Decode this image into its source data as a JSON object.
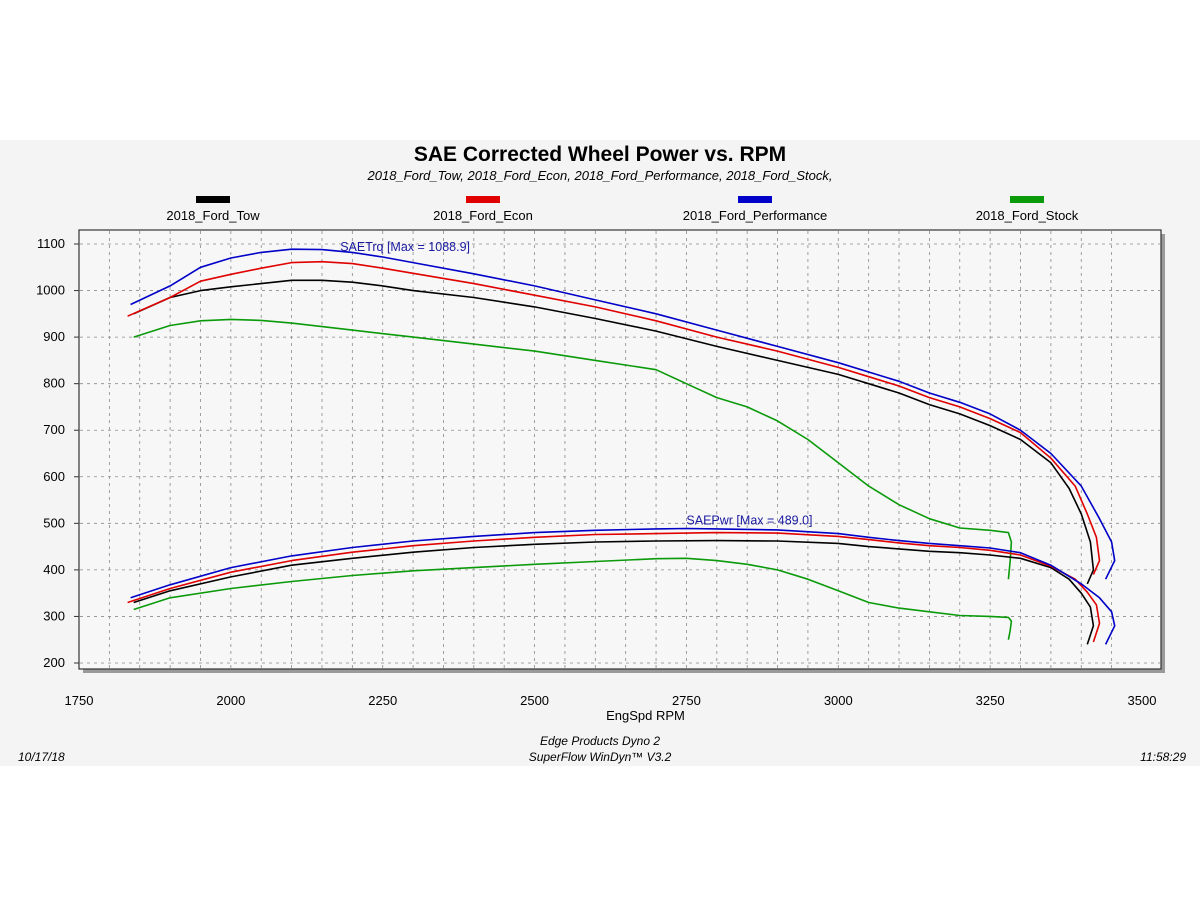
{
  "chart_data": {
    "type": "line",
    "title": "SAE Corrected Wheel Power vs. RPM",
    "subtitle": "2018_Ford_Tow, 2018_Ford_Econ, 2018_Ford_Performance, 2018_Ford_Stock,",
    "xlabel": "EngSpd RPM",
    "ylabel": "",
    "xlim": [
      1750,
      3500
    ],
    "ylim": [
      200,
      1100
    ],
    "xticks": [
      1750,
      2000,
      2250,
      2500,
      2750,
      3000,
      3250,
      3500
    ],
    "yticks": [
      200,
      300,
      400,
      500,
      600,
      700,
      800,
      900,
      1000,
      1100
    ],
    "grid": true,
    "legend": [
      {
        "name": "2018_Ford_Tow",
        "color": "#000000"
      },
      {
        "name": "2018_Ford_Econ",
        "color": "#e00000"
      },
      {
        "name": "2018_Ford_Performance",
        "color": "#0000c8"
      },
      {
        "name": "2018_Ford_Stock",
        "color": "#0a9a0a"
      }
    ],
    "annotations": [
      {
        "text": "SAETrq [Max = 1088.9]",
        "x": 2180,
        "y": 1088.9
      },
      {
        "text": "SAEPwr [Max = 489.0]",
        "x": 2750,
        "y": 489.0
      }
    ],
    "series": [
      {
        "name": "2018_Ford_Tow",
        "metric": "SAETrq",
        "color": "#000000",
        "x": [
          1840,
          1900,
          1950,
          2000,
          2050,
          2100,
          2150,
          2200,
          2250,
          2300,
          2400,
          2500,
          2600,
          2700,
          2800,
          2900,
          3000,
          3050,
          3100,
          3150,
          3200,
          3250,
          3300,
          3350,
          3380,
          3400,
          3415,
          3420,
          3410
        ],
        "y": [
          950,
          985,
          1000,
          1008,
          1015,
          1022,
          1022,
          1018,
          1010,
          1000,
          985,
          965,
          940,
          913,
          880,
          850,
          820,
          800,
          780,
          755,
          735,
          710,
          680,
          630,
          575,
          520,
          460,
          400,
          370
        ]
      },
      {
        "name": "2018_Ford_Econ",
        "metric": "SAETrq",
        "color": "#e00000",
        "x": [
          1830,
          1900,
          1950,
          2000,
          2050,
          2100,
          2150,
          2200,
          2250,
          2300,
          2400,
          2500,
          2600,
          2700,
          2800,
          2900,
          3000,
          3050,
          3100,
          3150,
          3200,
          3250,
          3300,
          3350,
          3390,
          3410,
          3425,
          3430,
          3420
        ],
        "y": [
          945,
          985,
          1020,
          1035,
          1048,
          1060,
          1062,
          1058,
          1048,
          1037,
          1015,
          990,
          965,
          935,
          900,
          870,
          835,
          815,
          795,
          770,
          750,
          725,
          695,
          640,
          580,
          520,
          470,
          420,
          390
        ]
      },
      {
        "name": "2018_Ford_Performance",
        "metric": "SAETrq",
        "color": "#0000c8",
        "x": [
          1835,
          1900,
          1950,
          2000,
          2050,
          2100,
          2150,
          2200,
          2250,
          2300,
          2400,
          2500,
          2600,
          2700,
          2800,
          2900,
          3000,
          3050,
          3100,
          3150,
          3200,
          3250,
          3300,
          3350,
          3400,
          3430,
          3450,
          3455,
          3440
        ],
        "y": [
          970,
          1010,
          1050,
          1070,
          1082,
          1088.9,
          1088,
          1082,
          1072,
          1060,
          1036,
          1010,
          980,
          950,
          915,
          880,
          845,
          825,
          805,
          780,
          760,
          735,
          700,
          650,
          580,
          510,
          460,
          420,
          380
        ]
      },
      {
        "name": "2018_Ford_Stock",
        "metric": "SAETrq",
        "color": "#0a9a0a",
        "x": [
          1840,
          1900,
          1950,
          2000,
          2050,
          2100,
          2200,
          2300,
          2400,
          2500,
          2600,
          2700,
          2750,
          2800,
          2850,
          2900,
          2950,
          3000,
          3050,
          3100,
          3150,
          3200,
          3250,
          3280,
          3285,
          3283,
          3280
        ],
        "y": [
          900,
          925,
          935,
          938,
          936,
          930,
          915,
          900,
          885,
          870,
          850,
          830,
          800,
          770,
          750,
          720,
          680,
          630,
          580,
          540,
          510,
          490,
          485,
          480,
          460,
          420,
          380
        ]
      },
      {
        "name": "2018_Ford_Tow",
        "metric": "SAEPwr",
        "color": "#000000",
        "x": [
          1840,
          1900,
          2000,
          2100,
          2200,
          2300,
          2400,
          2500,
          2600,
          2700,
          2800,
          2900,
          3000,
          3050,
          3100,
          3150,
          3200,
          3250,
          3300,
          3350,
          3380,
          3400,
          3415,
          3420,
          3410
        ],
        "y": [
          330,
          355,
          385,
          410,
          425,
          438,
          448,
          455,
          460,
          462,
          463,
          462,
          457,
          450,
          445,
          440,
          437,
          432,
          425,
          405,
          380,
          350,
          320,
          280,
          240
        ]
      },
      {
        "name": "2018_Ford_Econ",
        "metric": "SAEPwr",
        "color": "#e00000",
        "x": [
          1830,
          1900,
          2000,
          2100,
          2200,
          2300,
          2400,
          2500,
          2600,
          2700,
          2800,
          2900,
          3000,
          3050,
          3100,
          3150,
          3200,
          3250,
          3300,
          3350,
          3390,
          3410,
          3425,
          3430,
          3420
        ],
        "y": [
          330,
          360,
          395,
          420,
          438,
          452,
          462,
          470,
          476,
          478,
          480,
          479,
          472,
          465,
          458,
          452,
          448,
          442,
          432,
          408,
          380,
          352,
          325,
          285,
          245
        ]
      },
      {
        "name": "2018_Ford_Performance",
        "metric": "SAEPwr",
        "color": "#0000c8",
        "x": [
          1835,
          1900,
          2000,
          2100,
          2200,
          2300,
          2400,
          2500,
          2600,
          2700,
          2750,
          2800,
          2900,
          3000,
          3050,
          3100,
          3150,
          3200,
          3250,
          3300,
          3350,
          3400,
          3430,
          3450,
          3455,
          3440
        ],
        "y": [
          340,
          368,
          405,
          430,
          448,
          462,
          472,
          480,
          485,
          488,
          489,
          488,
          486,
          478,
          470,
          463,
          457,
          452,
          447,
          437,
          410,
          370,
          340,
          310,
          280,
          240
        ]
      },
      {
        "name": "2018_Ford_Stock",
        "metric": "SAEPwr",
        "color": "#0a9a0a",
        "x": [
          1840,
          1900,
          2000,
          2100,
          2200,
          2300,
          2400,
          2500,
          2600,
          2700,
          2750,
          2800,
          2850,
          2900,
          2950,
          3000,
          3050,
          3100,
          3150,
          3200,
          3250,
          3280,
          3285,
          3283,
          3280
        ],
        "y": [
          315,
          340,
          360,
          375,
          388,
          398,
          405,
          412,
          418,
          424,
          425,
          420,
          412,
          400,
          380,
          355,
          330,
          318,
          310,
          302,
          300,
          298,
          290,
          270,
          250
        ]
      }
    ]
  },
  "footer": {
    "date": "10/17/18",
    "line1": "Edge Products Dyno 2",
    "line2": "SuperFlow WinDyn™ V3.2",
    "time": "11:58:29"
  }
}
